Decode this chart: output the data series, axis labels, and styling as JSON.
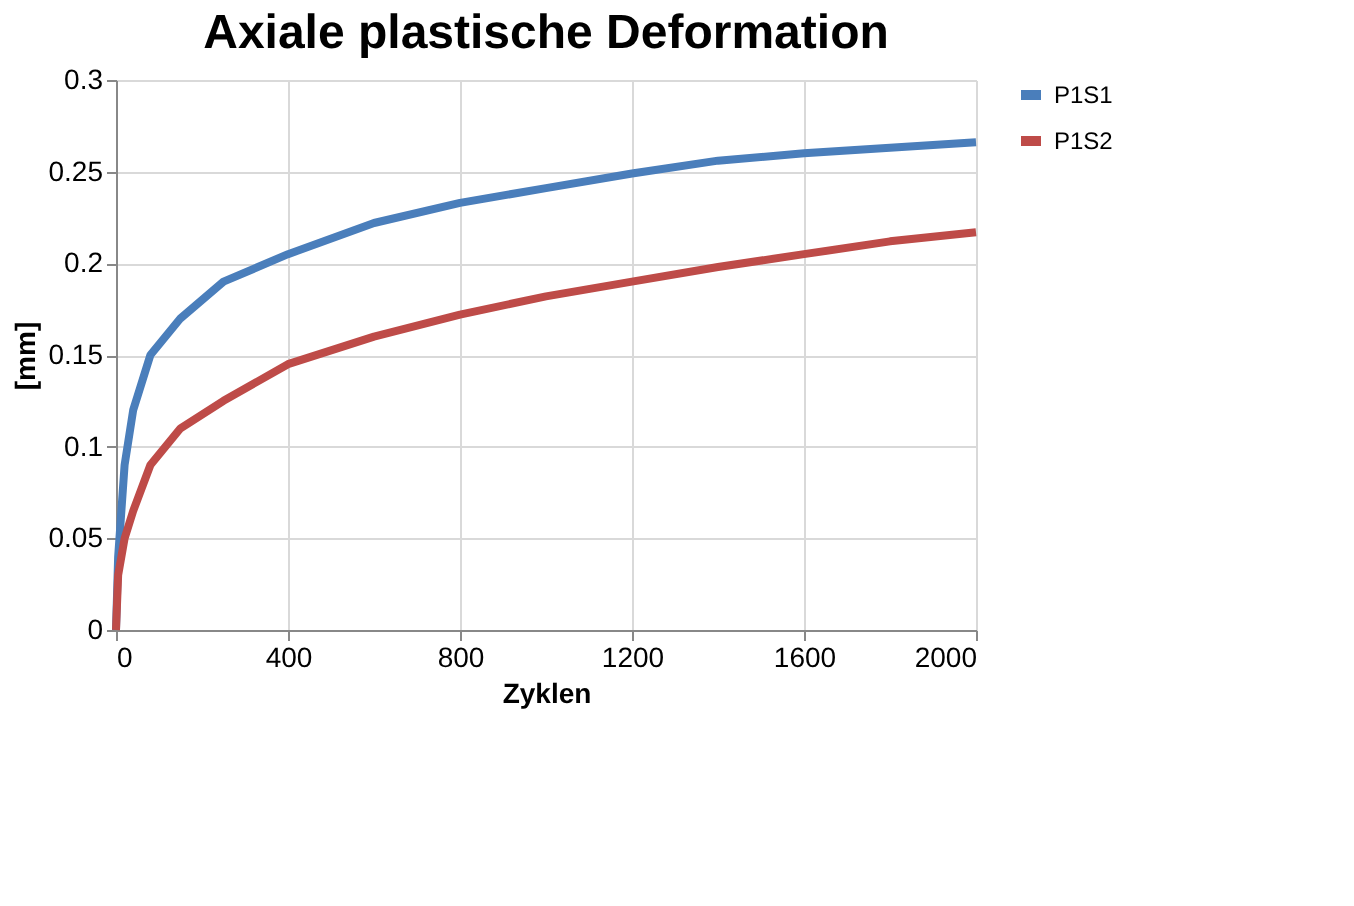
{
  "chart_data": {
    "type": "line",
    "title": "Axiale plastische Deformation",
    "xlabel": "Zyklen",
    "ylabel": "[mm]",
    "x": [
      0,
      5,
      20,
      40,
      80,
      150,
      250,
      400,
      600,
      800,
      1000,
      1200,
      1400,
      1600,
      1800,
      2000
    ],
    "series": [
      {
        "name": "P1S1",
        "color": "#4a7ebb",
        "values": [
          0,
          0.04,
          0.09,
          0.12,
          0.15,
          0.17,
          0.19,
          0.205,
          0.222,
          0.233,
          0.241,
          0.249,
          0.256,
          0.26,
          0.263,
          0.266
        ]
      },
      {
        "name": "P1S2",
        "color": "#be4b48",
        "values": [
          0,
          0.03,
          0.05,
          0.065,
          0.09,
          0.11,
          0.125,
          0.145,
          0.16,
          0.172,
          0.182,
          0.19,
          0.198,
          0.205,
          0.212,
          0.217
        ]
      }
    ],
    "xlim": [
      0,
      2000
    ],
    "xticks": [
      0,
      400,
      800,
      1200,
      1600,
      2000
    ],
    "ylim": [
      0,
      0.3
    ],
    "yticks": [
      0,
      0.05,
      0.1,
      0.15,
      0.2,
      0.25,
      0.3
    ],
    "grid": true,
    "legend": "right",
    "marker": "none",
    "line_style": "solid"
  }
}
